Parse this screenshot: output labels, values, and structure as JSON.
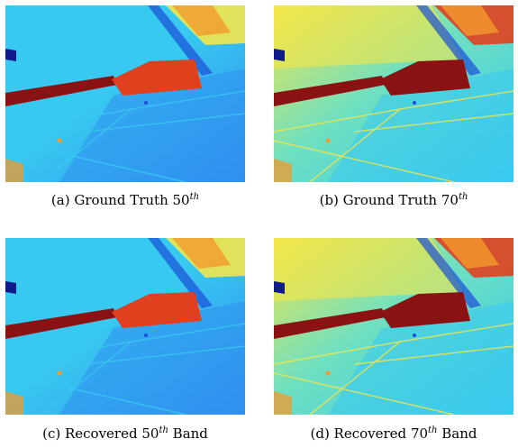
{
  "figure": {
    "panels": [
      {
        "id": "a",
        "prefix": "(a) Ground Truth ",
        "band": "50",
        "sup": "th",
        "suffix": "",
        "variant": "cool"
      },
      {
        "id": "b",
        "prefix": "(b) Ground Truth ",
        "band": "70",
        "sup": "th",
        "suffix": "",
        "variant": "warm"
      },
      {
        "id": "c",
        "prefix": "(c) Recovered ",
        "band": "50",
        "sup": "th",
        "suffix": " Band",
        "variant": "cool"
      },
      {
        "id": "d",
        "prefix": "(d) Recovered ",
        "band": "70",
        "sup": "th",
        "suffix": " Band",
        "variant": "warm"
      }
    ],
    "colors": {
      "deep_blue": "#1a4fd6",
      "blue": "#2f8ff0",
      "cyan": "#39c9f0",
      "aqua_green": "#6fe0c0",
      "yellow": "#f4e64a",
      "orange": "#f29a2e",
      "red": "#e0401e",
      "dark_red": "#8a1212",
      "navy": "#101a8a"
    }
  }
}
